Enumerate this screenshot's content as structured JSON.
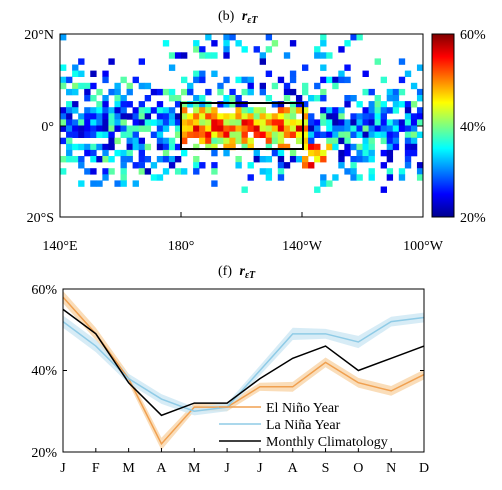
{
  "chart_data": [
    {
      "type": "heatmap",
      "title": "(b) r_εT",
      "title_prefix": "(b)",
      "title_var": "r",
      "title_sub": "εT",
      "y_ticks": [
        "20°N",
        "0°",
        "20°S"
      ],
      "x_ticks": [
        "140°E",
        "180°",
        "140°W",
        "100°W"
      ],
      "colorbar": {
        "ticks": [
          "60%",
          "40%",
          "20%"
        ],
        "range": [
          0.2,
          0.6
        ],
        "colormap": "jet"
      },
      "box": {
        "lon_range": [
          "180°",
          "140°W"
        ],
        "lat_range": [
          5,
          -5
        ]
      }
    },
    {
      "type": "line",
      "title": "(f) r_εT",
      "title_prefix": "(f)",
      "title_var": "r",
      "title_sub": "εT",
      "categories": [
        "J",
        "F",
        "M",
        "A",
        "M",
        "J",
        "J",
        "A",
        "S",
        "O",
        "N",
        "D"
      ],
      "y_ticks": [
        "60%",
        "40%",
        "20%"
      ],
      "ylim": [
        20,
        60
      ],
      "series": [
        {
          "name": "El Niño Year",
          "color": "#f0a050",
          "band_color": "#f9d4a8",
          "values": [
            58,
            49,
            38,
            22,
            31,
            31,
            36,
            36,
            42,
            37,
            35,
            39
          ],
          "spread": [
            1.5,
            1.5,
            1.2,
            1.5,
            1.0,
            1.0,
            1.0,
            1.2,
            1.2,
            1.2,
            1.2,
            1.2
          ]
        },
        {
          "name": "La Niña Year",
          "color": "#8fcbe6",
          "band_color": "#cde7f4",
          "values": [
            52,
            46,
            38,
            33,
            30,
            31,
            40,
            49,
            49,
            47,
            52,
            53
          ],
          "spread": [
            1.5,
            1.5,
            1.2,
            1.2,
            1.0,
            1.0,
            1.2,
            1.5,
            1.2,
            1.5,
            1.2,
            1.2
          ]
        },
        {
          "name": "Monthly Climatology",
          "color": "#000000",
          "values": [
            55,
            49,
            37,
            29,
            32,
            32,
            38,
            43,
            46,
            40,
            43,
            46
          ]
        }
      ]
    }
  ]
}
